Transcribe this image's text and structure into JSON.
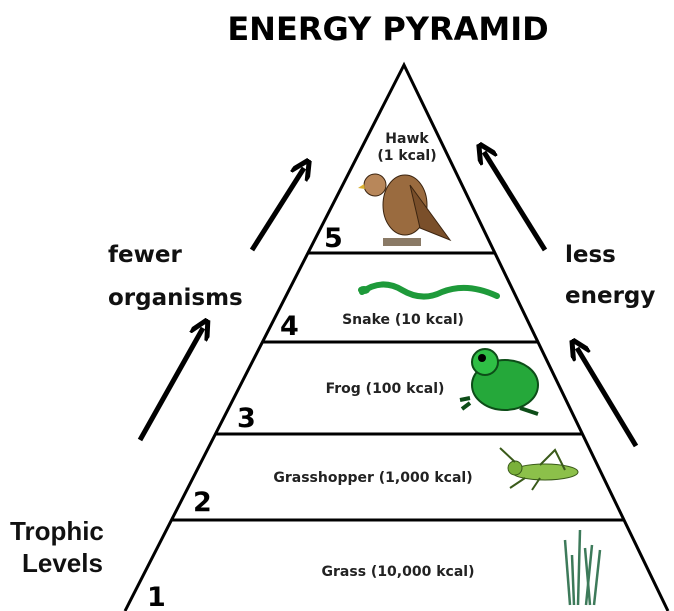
{
  "title": "ENERGY PYRAMID",
  "levels": [
    {
      "number": "5",
      "label": [
        "Hawk",
        "(1 kcal)"
      ]
    },
    {
      "number": "4",
      "label": [
        "Snake (10 kcal)"
      ]
    },
    {
      "number": "3",
      "label": [
        "Frog (100 kcal)"
      ]
    },
    {
      "number": "2",
      "label": [
        "Grasshopper (1,000 kcal)"
      ]
    },
    {
      "number": "1",
      "label": [
        "Grass (10,000 kcal)"
      ]
    }
  ],
  "left_label": [
    "fewer",
    "organisms"
  ],
  "right_label": [
    "less",
    "energy"
  ],
  "corner_label": [
    "Trophic",
    "Levels"
  ]
}
